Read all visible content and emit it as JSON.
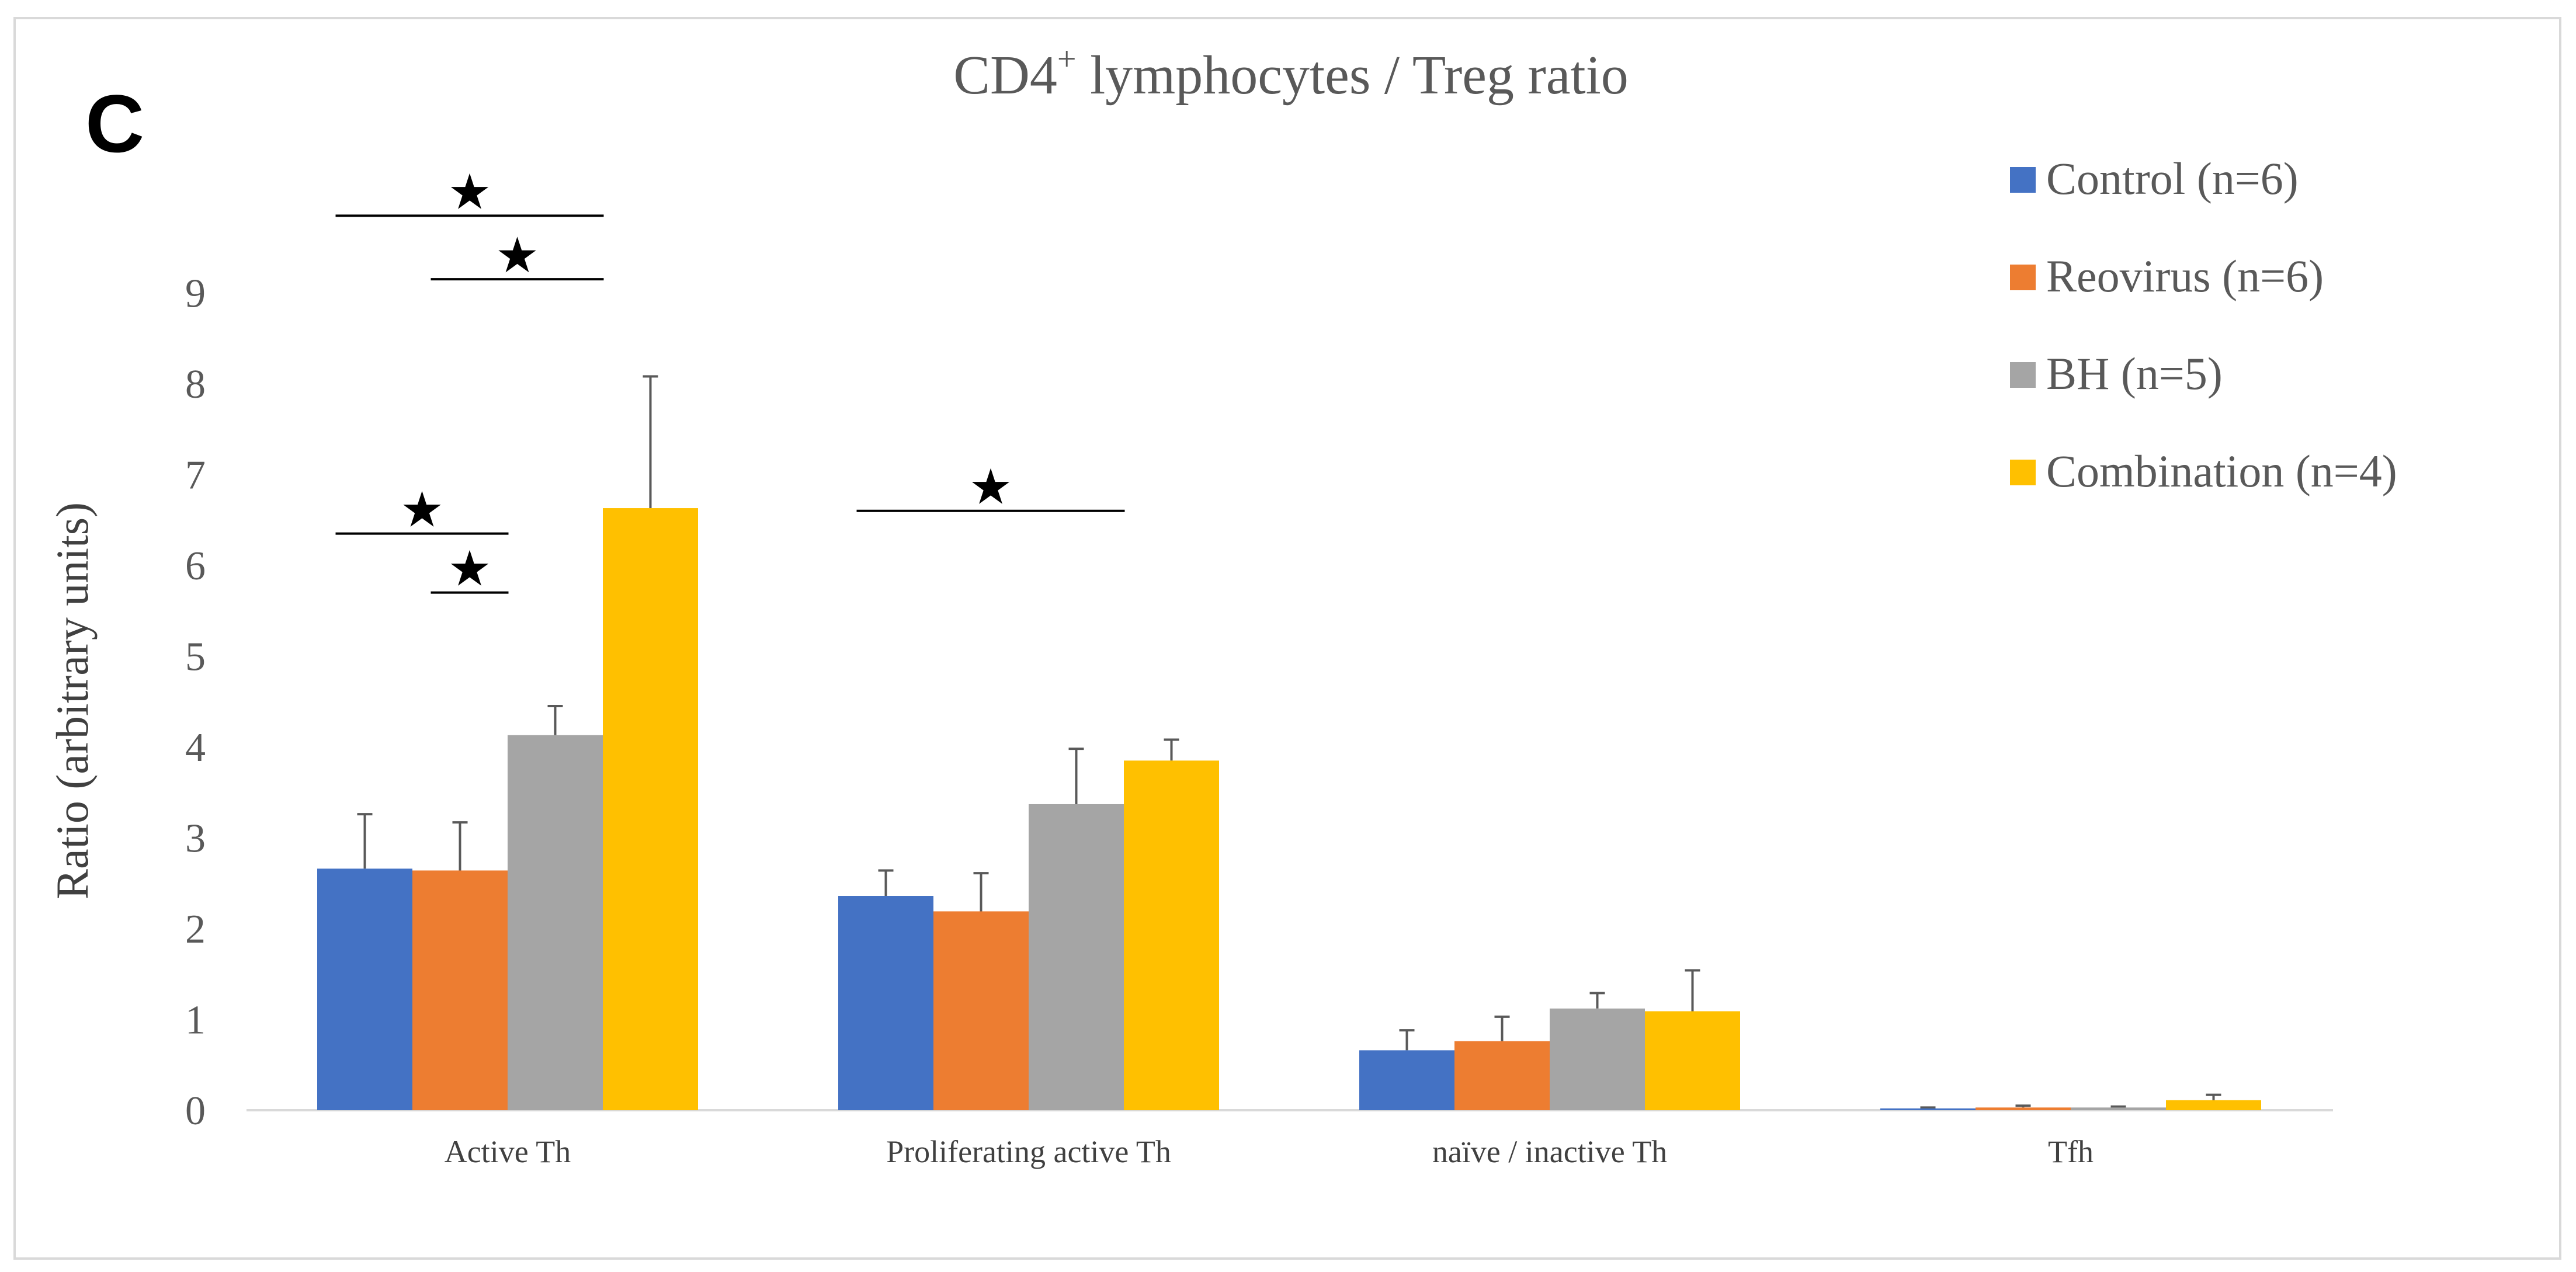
{
  "panel_label": "C",
  "chart_data": {
    "type": "bar",
    "title_main": "CD4",
    "title_sup": "+",
    "title_rest": " lymphocytes / Treg ratio",
    "ylabel": "Ratio (arbitrary units)",
    "xlabel": "",
    "ylim": [
      0,
      9
    ],
    "yticks": [
      "0",
      "1",
      "2",
      "3",
      "4",
      "5",
      "6",
      "7",
      "8",
      "9"
    ],
    "categories": [
      "Active Th",
      "Proliferating active Th",
      "naïve / inactive Th",
      "Tfh"
    ],
    "series": [
      {
        "name": "Control (n=6)",
        "color": "#4472C4",
        "values": [
          2.66,
          2.36,
          0.66,
          0.02
        ],
        "errors": [
          0.6,
          0.28,
          0.22,
          0.01
        ]
      },
      {
        "name": "Reovirus (n=6)",
        "color": "#ED7D31",
        "values": [
          2.64,
          2.19,
          0.76,
          0.03
        ],
        "errors": [
          0.53,
          0.42,
          0.27,
          0.02
        ]
      },
      {
        "name": "BH (n=5)",
        "color": "#A5A5A5",
        "values": [
          4.13,
          3.37,
          1.12,
          0.03
        ],
        "errors": [
          0.32,
          0.61,
          0.17,
          0.01
        ]
      },
      {
        "name": "Combination (n=4)",
        "color": "#FFC000",
        "values": [
          6.63,
          3.85,
          1.09,
          0.11
        ],
        "errors": [
          1.45,
          0.23,
          0.45,
          0.06
        ]
      }
    ],
    "legend_position": "top-right",
    "grid": false,
    "significance": [
      {
        "category": 0,
        "from_series": 0,
        "to_series": 3,
        "level": 9.85,
        "symbol": "★"
      },
      {
        "category": 0,
        "from_series": 1,
        "to_series": 3,
        "level": 9.15,
        "symbol": "★"
      },
      {
        "category": 0,
        "from_series": 0,
        "to_series": 2,
        "level": 6.35,
        "symbol": "★"
      },
      {
        "category": 0,
        "from_series": 1,
        "to_series": 2,
        "level": 5.7,
        "symbol": "★"
      },
      {
        "category": 1,
        "from_series": 0,
        "to_series": 3,
        "level": 6.6,
        "symbol": "★"
      }
    ]
  }
}
